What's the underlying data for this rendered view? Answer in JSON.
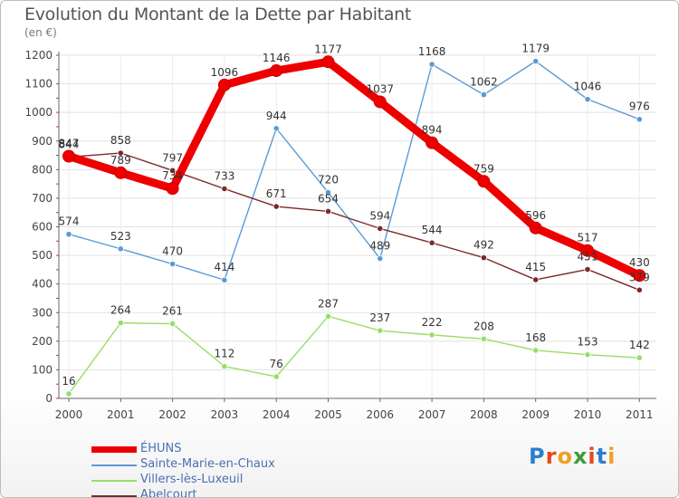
{
  "page": {
    "title": "Evolution du Montant de la Dette par Habitant",
    "unit": "(en €)"
  },
  "logo": {
    "text": "Proxiti",
    "letter_colors": [
      "#2a7fd0",
      "#e8471c",
      "#f0a020",
      "#3a9c3a",
      "#e8471c",
      "#2a7fd0",
      "#f0a020"
    ]
  },
  "chart_data": {
    "type": "line",
    "title": "Evolution du Montant de la Dette par Habitant",
    "ylabel": "(en €)",
    "xlabel": "",
    "x": [
      "2000",
      "2001",
      "2002",
      "2003",
      "2004",
      "2005",
      "2006",
      "2007",
      "2008",
      "2009",
      "2010",
      "2011"
    ],
    "ylim": [
      0,
      1200
    ],
    "yticks": [
      0,
      100,
      200,
      300,
      400,
      500,
      600,
      700,
      800,
      900,
      1000,
      1100,
      1200
    ],
    "grid": true,
    "legend_position": "bottom-left",
    "series": [
      {
        "name": "ÉHUNS",
        "color": "#ee0000",
        "values": [
          847,
          789,
          734,
          1096,
          1146,
          1177,
          1037,
          894,
          759,
          596,
          517,
          430
        ]
      },
      {
        "name": "Sainte-Marie-en-Chaux",
        "color": "#5b9bd5",
        "values": [
          574,
          523,
          470,
          414,
          944,
          720,
          489,
          1168,
          1062,
          1179,
          1046,
          976
        ]
      },
      {
        "name": "Villers-lès-Luxeuil",
        "color": "#99dd66",
        "values": [
          16,
          264,
          261,
          112,
          76,
          287,
          237,
          222,
          208,
          168,
          153,
          142
        ]
      },
      {
        "name": "Abelcourt",
        "color": "#7a2a2a",
        "values": [
          844,
          858,
          797,
          733,
          671,
          654,
          594,
          544,
          492,
          415,
          451,
          379
        ]
      }
    ]
  }
}
